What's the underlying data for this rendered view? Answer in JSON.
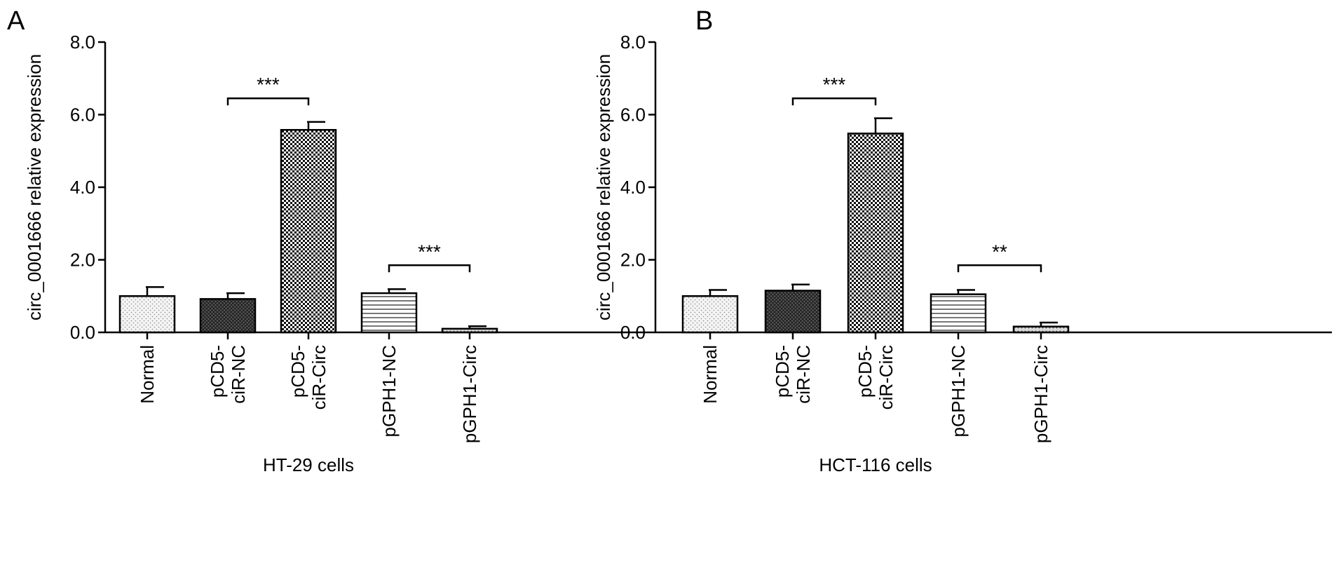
{
  "chart_data": [
    {
      "panel": "A",
      "type": "bar",
      "xlabel": "HT-29 cells",
      "ylabel": "circ_0001666 relative expression",
      "ylim": [
        0,
        8
      ],
      "yticks": [
        "0.0",
        "2.0",
        "4.0",
        "6.0",
        "8.0"
      ],
      "categories": [
        [
          "Normal"
        ],
        [
          "pCD5-",
          "ciR-NC"
        ],
        [
          "pCD5-",
          "ciR-Circ"
        ],
        [
          "pGPH1-NC"
        ],
        [
          "pGPH1-Circ"
        ]
      ],
      "values": [
        1.0,
        0.92,
        5.58,
        1.08,
        0.1
      ],
      "errors": [
        0.25,
        0.16,
        0.22,
        0.11,
        0.07
      ],
      "patterns": [
        "dots",
        "dense-crosshatch",
        "checker",
        "horizontal-lines",
        "sparse-dots"
      ],
      "significance": [
        {
          "from": 1,
          "to": 2,
          "label": "***",
          "y": 6.45
        },
        {
          "from": 3,
          "to": 4,
          "label": "***",
          "y": 1.85
        }
      ]
    },
    {
      "panel": "B",
      "type": "bar",
      "xlabel": "HCT-116 cells",
      "ylabel": "circ_0001666 relative expression",
      "ylim": [
        0,
        8
      ],
      "yticks": [
        "0.0",
        "2.0",
        "4.0",
        "6.0",
        "8.0"
      ],
      "categories": [
        [
          "Normal"
        ],
        [
          "pCD5-",
          "ciR-NC"
        ],
        [
          "pCD5-",
          "ciR-Circ"
        ],
        [
          "pGPH1-NC"
        ],
        [
          "pGPH1-Circ"
        ]
      ],
      "values": [
        1.0,
        1.15,
        5.48,
        1.05,
        0.16
      ],
      "errors": [
        0.17,
        0.17,
        0.42,
        0.12,
        0.11
      ],
      "patterns": [
        "dots",
        "dense-crosshatch",
        "checker",
        "horizontal-lines",
        "sparse-dots"
      ],
      "significance": [
        {
          "from": 1,
          "to": 2,
          "label": "***",
          "y": 6.45
        },
        {
          "from": 3,
          "to": 4,
          "label": "**",
          "y": 1.85
        }
      ]
    }
  ]
}
